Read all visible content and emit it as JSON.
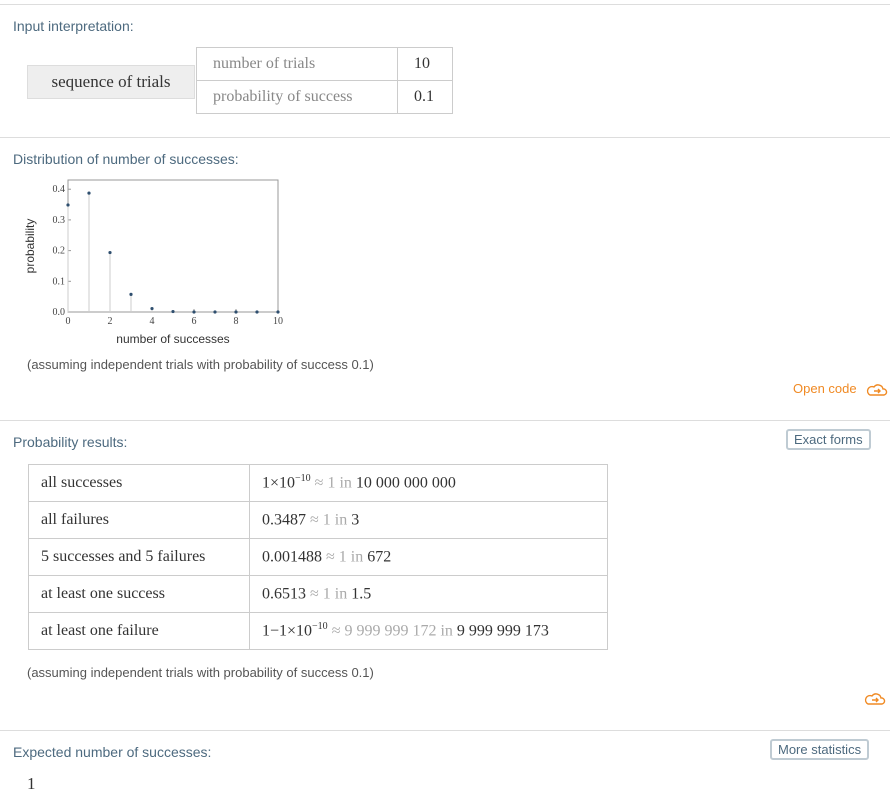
{
  "input": {
    "header": "Input interpretation:",
    "label": "sequence of trials",
    "rows": [
      {
        "name": "number of trials",
        "value": "10"
      },
      {
        "name": "probability of success",
        "value": "0.1"
      }
    ]
  },
  "distribution": {
    "header": "Distribution of number of successes:",
    "note": "(assuming independent trials with probability of success 0.1)",
    "open_code": "Open code"
  },
  "chart_data": {
    "type": "scatter",
    "style": "stem",
    "xlabel": "number of successes",
    "ylabel": "probability",
    "xlim": [
      0,
      10
    ],
    "ylim": [
      0,
      0.43
    ],
    "xticks": [
      "0",
      "2",
      "4",
      "6",
      "8",
      "10"
    ],
    "yticks": [
      "0.0",
      "0.1",
      "0.2",
      "0.3",
      "0.4"
    ],
    "x": [
      0,
      1,
      2,
      3,
      4,
      5,
      6,
      7,
      8,
      9,
      10
    ],
    "y": [
      0.3487,
      0.3874,
      0.1937,
      0.0574,
      0.0112,
      0.0015,
      0.0001,
      0,
      0,
      0,
      0
    ],
    "color": "#2f4f6f"
  },
  "probability": {
    "header": "Probability results:",
    "exact_forms": "Exact forms",
    "note": "(assuming independent trials with probability of success 0.1)",
    "rows": [
      {
        "label": "all successes",
        "value": "1×10",
        "exp": "−10",
        "approx": "≈ 1 in",
        "odds": "10 000 000 000"
      },
      {
        "label": "all failures",
        "value": "0.3487",
        "exp": "",
        "approx": "≈ 1 in",
        "odds": "3"
      },
      {
        "label": "5 successes and 5 failures",
        "value": "0.001488",
        "exp": "",
        "approx": "≈ 1 in",
        "odds": "672"
      },
      {
        "label": "at least one success",
        "value": "0.6513",
        "exp": "",
        "approx": "≈ 1 in",
        "odds": "1.5"
      },
      {
        "label": "at least one failure",
        "value": "1−1×10",
        "exp": "−10",
        "approx": "≈ 9 999 999 172 in",
        "odds": "9 999 999 173"
      }
    ]
  },
  "expected": {
    "header": "Expected number of successes:",
    "more": "More statistics",
    "value": "1"
  },
  "accent": "#f08a24"
}
